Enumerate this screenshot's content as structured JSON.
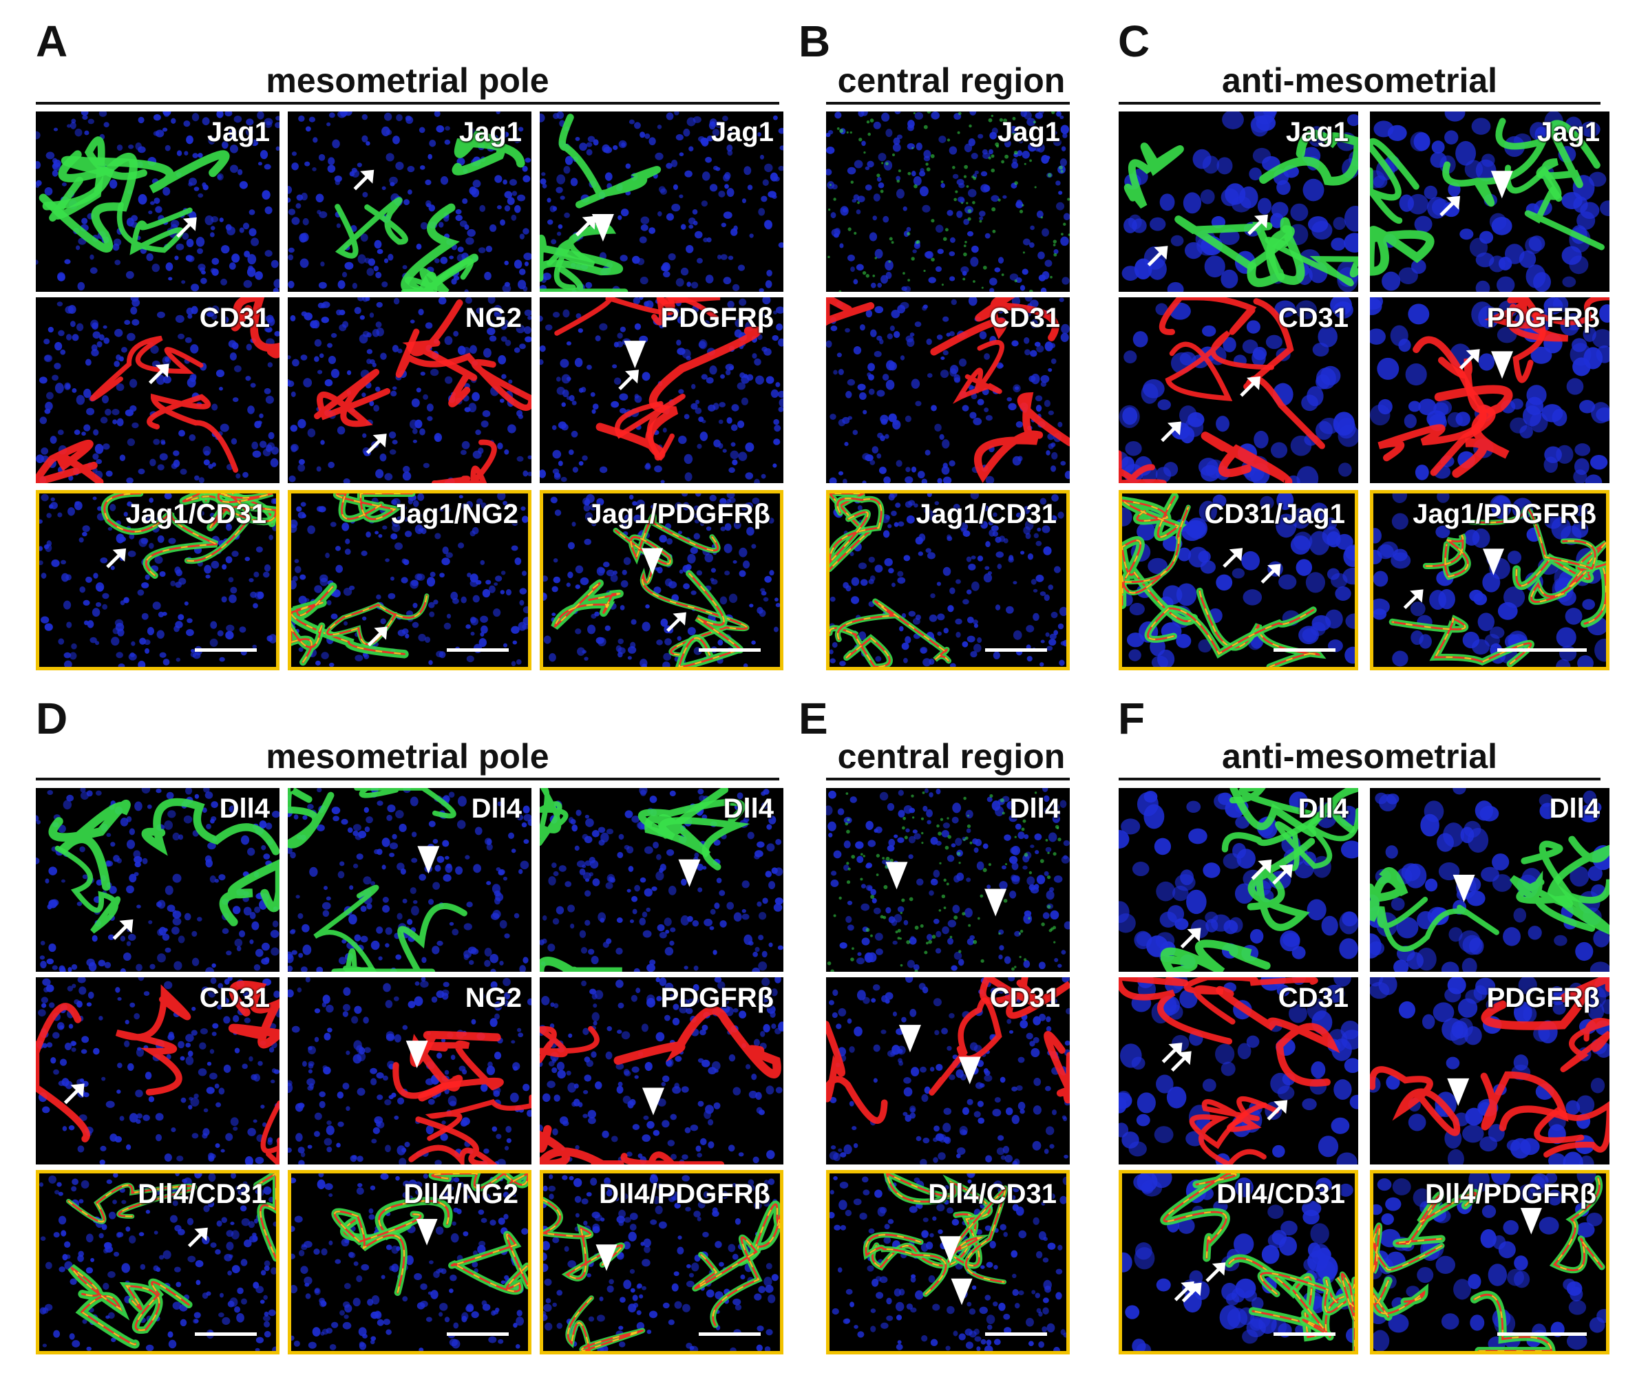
{
  "sections": {
    "A": {
      "letter": "A",
      "title": "mesometrial pole"
    },
    "B": {
      "letter": "B",
      "title": "central region"
    },
    "C": {
      "letter": "C",
      "title": "anti-mesometrial"
    },
    "D": {
      "letter": "D",
      "title": "mesometrial pole"
    },
    "E": {
      "letter": "E",
      "title": "central region"
    },
    "F": {
      "letter": "F",
      "title": "anti-mesometrial"
    }
  },
  "tiles": [
    {
      "label": "Jag1",
      "channel": "green",
      "merge": false,
      "scalebar": false,
      "arrows": 1,
      "arrowheads": 0
    },
    {
      "label": "Jag1",
      "channel": "green",
      "merge": false,
      "scalebar": false,
      "arrows": 1,
      "arrowheads": 0
    },
    {
      "label": "Jag1",
      "channel": "green",
      "merge": false,
      "scalebar": false,
      "arrows": 1,
      "arrowheads": 1
    },
    {
      "label": "Jag1",
      "channel": "green",
      "merge": false,
      "scalebar": false,
      "arrows": 0,
      "arrowheads": 0,
      "faint": true
    },
    {
      "label": "Jag1",
      "channel": "green",
      "merge": false,
      "scalebar": false,
      "arrows": 2,
      "arrowheads": 0
    },
    {
      "label": "Jag1",
      "channel": "green",
      "merge": false,
      "scalebar": false,
      "arrows": 1,
      "arrowheads": 1
    },
    {
      "label": "CD31",
      "channel": "red",
      "merge": false,
      "scalebar": false,
      "arrows": 1,
      "arrowheads": 0
    },
    {
      "label": "NG2",
      "channel": "red",
      "merge": false,
      "scalebar": false,
      "arrows": 1,
      "arrowheads": 0
    },
    {
      "label": "PDGFRβ",
      "channel": "red",
      "merge": false,
      "scalebar": false,
      "arrows": 1,
      "arrowheads": 1
    },
    {
      "label": "CD31",
      "channel": "red",
      "merge": false,
      "scalebar": false,
      "arrows": 0,
      "arrowheads": 0
    },
    {
      "label": "CD31",
      "channel": "red",
      "merge": false,
      "scalebar": false,
      "arrows": 2,
      "arrowheads": 0
    },
    {
      "label": "PDGFRβ",
      "channel": "red",
      "merge": false,
      "scalebar": false,
      "arrows": 1,
      "arrowheads": 1
    },
    {
      "label": "Jag1/CD31",
      "channel": "merge",
      "merge": true,
      "scalebar": true,
      "arrows": 1,
      "arrowheads": 0
    },
    {
      "label": "Jag1/NG2",
      "channel": "merge",
      "merge": true,
      "scalebar": true,
      "arrows": 1,
      "arrowheads": 0
    },
    {
      "label": "Jag1/PDGFRβ",
      "channel": "merge",
      "merge": true,
      "scalebar": true,
      "arrows": 1,
      "arrowheads": 1
    },
    {
      "label": "Jag1/CD31",
      "channel": "merge",
      "merge": true,
      "scalebar": true,
      "arrows": 0,
      "arrowheads": 0
    },
    {
      "label": "CD31/Jag1",
      "channel": "merge",
      "merge": true,
      "scalebar": true,
      "arrows": 2,
      "arrowheads": 0
    },
    {
      "label": "Jag1/PDGFRβ",
      "channel": "merge",
      "merge": true,
      "scalebar": true,
      "arrows": 1,
      "arrowheads": 1
    },
    {
      "label": "Dll4",
      "channel": "green",
      "merge": false,
      "scalebar": false,
      "arrows": 1,
      "arrowheads": 0
    },
    {
      "label": "Dll4",
      "channel": "green",
      "merge": false,
      "scalebar": false,
      "arrows": 0,
      "arrowheads": 1
    },
    {
      "label": "Dll4",
      "channel": "green",
      "merge": false,
      "scalebar": false,
      "arrows": 0,
      "arrowheads": 1
    },
    {
      "label": "Dll4",
      "channel": "green",
      "merge": false,
      "scalebar": false,
      "arrows": 0,
      "arrowheads": 2,
      "faint": true
    },
    {
      "label": "Dll4",
      "channel": "green",
      "merge": false,
      "scalebar": false,
      "arrows": 3,
      "arrowheads": 0
    },
    {
      "label": "Dll4",
      "channel": "green",
      "merge": false,
      "scalebar": false,
      "arrows": 0,
      "arrowheads": 1
    },
    {
      "label": "CD31",
      "channel": "red",
      "merge": false,
      "scalebar": false,
      "arrows": 1,
      "arrowheads": 0
    },
    {
      "label": "NG2",
      "channel": "red",
      "merge": false,
      "scalebar": false,
      "arrows": 0,
      "arrowheads": 1
    },
    {
      "label": "PDGFRβ",
      "channel": "red",
      "merge": false,
      "scalebar": false,
      "arrows": 0,
      "arrowheads": 1
    },
    {
      "label": "CD31",
      "channel": "red",
      "merge": false,
      "scalebar": false,
      "arrows": 0,
      "arrowheads": 2
    },
    {
      "label": "CD31",
      "channel": "red",
      "merge": false,
      "scalebar": false,
      "arrows": 3,
      "arrowheads": 0
    },
    {
      "label": "PDGFRβ",
      "channel": "red",
      "merge": false,
      "scalebar": false,
      "arrows": 0,
      "arrowheads": 1
    },
    {
      "label": "Dll4/CD31",
      "channel": "merge",
      "merge": true,
      "scalebar": true,
      "arrows": 1,
      "arrowheads": 0
    },
    {
      "label": "Dll4/NG2",
      "channel": "merge",
      "merge": true,
      "scalebar": true,
      "arrows": 0,
      "arrowheads": 1
    },
    {
      "label": "Dll4/PDGFRβ",
      "channel": "merge",
      "merge": true,
      "scalebar": true,
      "arrows": 0,
      "arrowheads": 1
    },
    {
      "label": "Dll4/CD31",
      "channel": "merge",
      "merge": true,
      "scalebar": true,
      "arrows": 0,
      "arrowheads": 2
    },
    {
      "label": "Dll4/CD31",
      "channel": "merge",
      "merge": true,
      "scalebar": true,
      "arrows": 3,
      "arrowheads": 0
    },
    {
      "label": "Dll4/PDGFRβ",
      "channel": "merge",
      "merge": true,
      "scalebar": true,
      "arrows": 0,
      "arrowheads": 1
    }
  ],
  "colors": {
    "nuclei": "#1f2fd8",
    "green": "#39e04a",
    "red": "#ff2222",
    "merge_yellow": "#f0e020",
    "merge_border": "#f2c200",
    "annotation": "#ffffff"
  }
}
